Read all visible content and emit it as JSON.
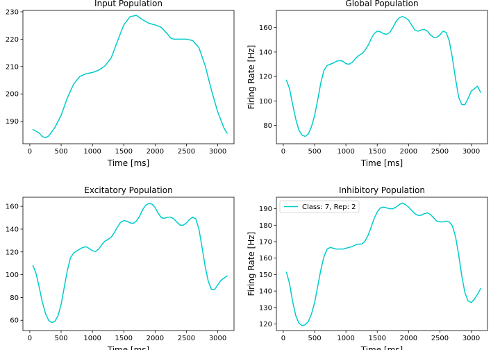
{
  "chart_data": [
    {
      "type": "line",
      "title": "Input Population",
      "xlabel": "Time [ms]",
      "ylabel": "",
      "xlim": [
        -110,
        3260
      ],
      "ylim": [
        181.8,
        230.5
      ],
      "xticks": [
        0,
        500,
        1000,
        1500,
        2000,
        2500,
        3000
      ],
      "yticks": [
        190,
        200,
        210,
        220,
        230
      ],
      "grid": false,
      "legend": null,
      "series": [
        {
          "name": "",
          "color": "#00cccc",
          "x": [
            50,
            100,
            150,
            200,
            250,
            300,
            400,
            500,
            600,
            700,
            800,
            900,
            1000,
            1100,
            1200,
            1300,
            1400,
            1500,
            1600,
            1700,
            1800,
            1900,
            2000,
            2100,
            2200,
            2250,
            2300,
            2400,
            2500,
            2600,
            2700,
            2800,
            2900,
            3000,
            3100,
            3150
          ],
          "y": [
            187,
            186.4,
            185.7,
            184.4,
            184,
            184.6,
            187.7,
            192.2,
            198.6,
            203.6,
            206.4,
            207.4,
            207.8,
            208.7,
            210.2,
            213.2,
            219.3,
            225.2,
            228.2,
            228.7,
            227.1,
            225.8,
            225.2,
            224.3,
            221.8,
            220.4,
            220,
            220,
            220,
            219.5,
            216.9,
            210.3,
            201.3,
            193.4,
            187.5,
            185.6
          ]
        }
      ]
    },
    {
      "type": "line",
      "title": "Global Population",
      "xlabel": "Time [ms]",
      "ylabel": "Firing Rate [Hz]",
      "xlim": [
        -110,
        3260
      ],
      "ylim": [
        65,
        174
      ],
      "xticks": [
        0,
        500,
        1000,
        1500,
        2000,
        2500,
        3000
      ],
      "yticks": [
        80,
        100,
        120,
        140,
        160
      ],
      "grid": false,
      "legend": null,
      "series": [
        {
          "name": "",
          "color": "#00cccc",
          "x": [
            50,
            100,
            150,
            200,
            250,
            300,
            350,
            400,
            450,
            500,
            550,
            600,
            650,
            700,
            750,
            800,
            850,
            900,
            950,
            1000,
            1050,
            1100,
            1150,
            1200,
            1250,
            1300,
            1350,
            1400,
            1450,
            1500,
            1550,
            1600,
            1650,
            1700,
            1750,
            1800,
            1850,
            1900,
            1950,
            2000,
            2050,
            2100,
            2150,
            2200,
            2250,
            2300,
            2350,
            2400,
            2450,
            2500,
            2550,
            2600,
            2650,
            2700,
            2750,
            2800,
            2850,
            2900,
            2950,
            3000,
            3050,
            3100,
            3150
          ],
          "y": [
            117,
            110,
            97,
            85,
            76,
            72,
            71,
            73,
            79,
            88,
            101,
            115,
            125,
            129,
            130,
            131,
            132.5,
            133,
            132.5,
            130.5,
            130,
            131.5,
            134.5,
            137,
            138.5,
            141,
            145,
            150.5,
            155,
            157,
            156.5,
            155,
            154.5,
            156,
            160,
            165,
            168,
            169,
            168,
            166,
            162,
            158,
            157,
            158,
            158.5,
            157,
            154,
            152,
            152,
            154,
            157,
            156,
            149,
            135,
            118,
            103,
            97,
            97,
            102,
            108,
            110,
            112,
            107
          ]
        }
      ]
    },
    {
      "type": "line",
      "title": "Excitatory Population",
      "xlabel": "Time [ms]",
      "ylabel": "",
      "xlim": [
        -110,
        3260
      ],
      "ylim": [
        51,
        168
      ],
      "xticks": [
        0,
        500,
        1000,
        1500,
        2000,
        2500,
        3000
      ],
      "yticks": [
        60,
        80,
        100,
        120,
        140,
        160
      ],
      "grid": false,
      "legend": null,
      "series": [
        {
          "name": "",
          "color": "#00cccc",
          "x": [
            50,
            100,
            150,
            200,
            250,
            300,
            350,
            400,
            450,
            500,
            550,
            600,
            650,
            700,
            750,
            800,
            850,
            900,
            950,
            1000,
            1050,
            1100,
            1150,
            1200,
            1250,
            1300,
            1350,
            1400,
            1450,
            1500,
            1550,
            1600,
            1650,
            1700,
            1750,
            1800,
            1850,
            1900,
            1950,
            2000,
            2050,
            2100,
            2150,
            2200,
            2250,
            2300,
            2350,
            2400,
            2450,
            2500,
            2550,
            2600,
            2650,
            2700,
            2750,
            2800,
            2850,
            2900,
            2950,
            3000,
            3050,
            3100,
            3150
          ],
          "y": [
            108,
            101,
            89,
            76,
            66,
            60,
            58,
            59,
            64,
            74,
            89,
            104,
            115,
            119,
            121,
            122.5,
            124,
            124.5,
            123,
            121,
            120.5,
            122.5,
            126.5,
            129.5,
            131,
            133,
            137,
            142,
            146,
            147.5,
            147,
            145.5,
            145,
            147,
            151,
            157,
            161,
            162.5,
            162,
            159,
            154,
            150,
            149.5,
            150.5,
            150.5,
            149,
            146,
            143.5,
            143.5,
            145.5,
            148.5,
            150.5,
            149,
            140,
            124,
            107,
            94,
            87,
            87,
            91,
            95,
            97,
            99
          ]
        }
      ]
    },
    {
      "type": "line",
      "title": "Inhibitory Population",
      "xlabel": "Time [ms]",
      "ylabel": "Firing Rate [Hz]",
      "xlim": [
        -110,
        3260
      ],
      "ylim": [
        116,
        197
      ],
      "xticks": [
        0,
        500,
        1000,
        1500,
        2000,
        2500,
        3000
      ],
      "yticks": [
        120,
        130,
        140,
        150,
        160,
        170,
        180,
        190
      ],
      "grid": false,
      "legend": "upper left",
      "series": [
        {
          "name": "Class: 7, Rep: 2",
          "color": "#00cccc",
          "x": [
            50,
            100,
            150,
            200,
            250,
            300,
            350,
            400,
            450,
            500,
            550,
            600,
            650,
            700,
            750,
            800,
            850,
            900,
            950,
            1000,
            1050,
            1100,
            1150,
            1200,
            1250,
            1300,
            1350,
            1400,
            1450,
            1500,
            1550,
            1600,
            1650,
            1700,
            1750,
            1800,
            1850,
            1900,
            1950,
            2000,
            2050,
            2100,
            2150,
            2200,
            2250,
            2300,
            2350,
            2400,
            2450,
            2500,
            2550,
            2600,
            2650,
            2700,
            2750,
            2800,
            2850,
            2900,
            2950,
            3000,
            3050,
            3100,
            3150
          ],
          "y": [
            151.5,
            144.5,
            133.5,
            125,
            120.5,
            119,
            119.5,
            121.5,
            126,
            133,
            143,
            153,
            161,
            165.5,
            166.5,
            166,
            165.5,
            165.5,
            165.5,
            166,
            166.5,
            167,
            168,
            168.5,
            168.5,
            170,
            173.5,
            178.5,
            184,
            188,
            190.5,
            191,
            190.5,
            190,
            190,
            191,
            192.5,
            193.5,
            192.5,
            191,
            189,
            187,
            186,
            186,
            187,
            187.5,
            186.5,
            184.5,
            182.5,
            182,
            182,
            182.5,
            182,
            179.5,
            173,
            162,
            149,
            139,
            134,
            133,
            135,
            138,
            141.5
          ]
        }
      ]
    }
  ]
}
